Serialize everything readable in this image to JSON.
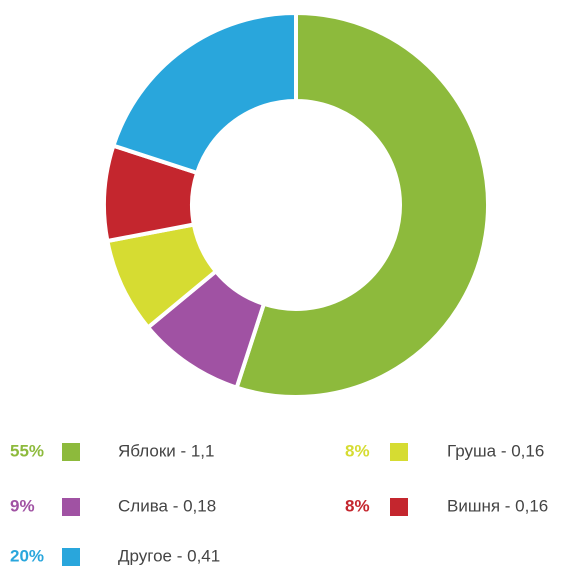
{
  "chart_data": {
    "type": "pie",
    "donut": true,
    "categories": [
      "Яблоки - 1,1",
      "Слива - 0,18",
      "Груша - 0,16",
      "Вишня - 0,16",
      "Другое - 0,41"
    ],
    "values": [
      55,
      9,
      8,
      8,
      20
    ],
    "value_labels": [
      "55%",
      "9%",
      "8%",
      "8%",
      "20%"
    ],
    "colors": [
      "#8dba3c",
      "#a052a3",
      "#d6dc32",
      "#c4262e",
      "#29a6dc"
    ]
  }
}
